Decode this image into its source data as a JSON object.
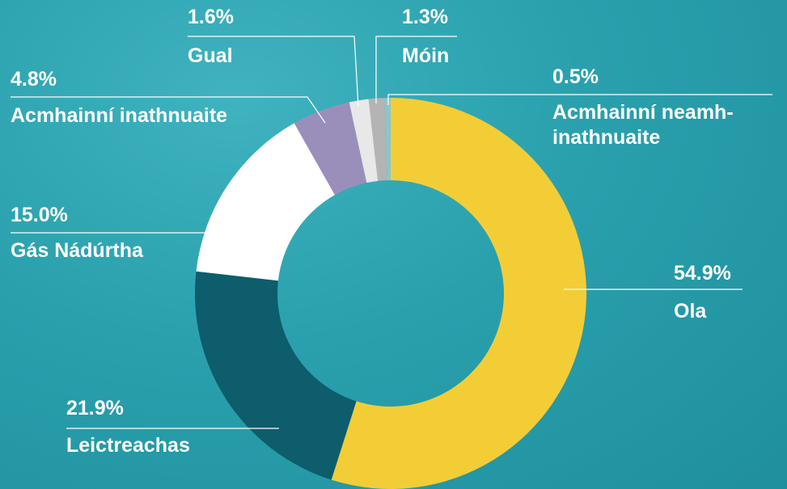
{
  "chart_data": {
    "type": "donut",
    "categories": [
      "Ola",
      "Leictreachas",
      "Gás Nádúrtha",
      "Acmhainní inathnuaite",
      "Gual",
      "Móin",
      "Acmhainní neamh-inathnuaite"
    ],
    "values": [
      54.9,
      21.9,
      15.0,
      4.8,
      1.6,
      1.3,
      0.5
    ],
    "value_labels": [
      "54.9%",
      "21.9%",
      "15.0%",
      "4.8%",
      "1.6%",
      "1.3%",
      "0.5%"
    ],
    "colors": [
      "#f3cd36",
      "#0d5d6c",
      "#ffffff",
      "#9a8fbb",
      "#e8e8e8",
      "#b4b4b4",
      "#8cc5cb"
    ]
  }
}
